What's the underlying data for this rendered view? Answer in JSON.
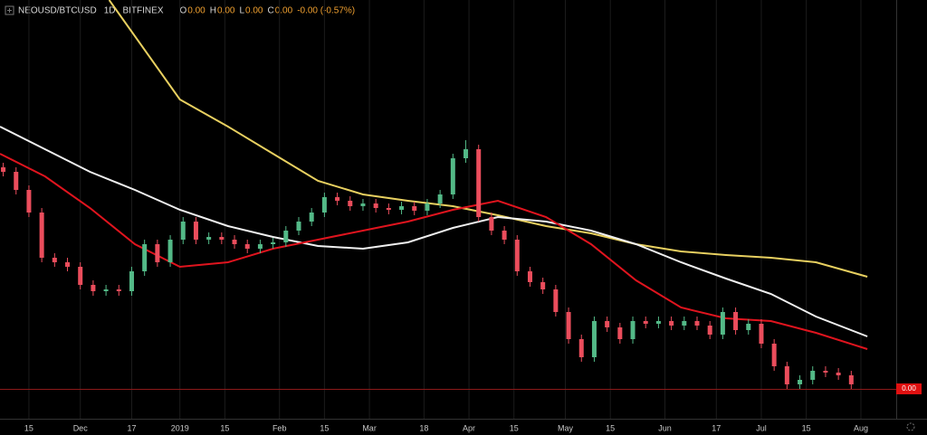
{
  "chart_data": {
    "type": "candlestick",
    "header": {
      "symbol": "NEOUSD/BTCUSD",
      "interval": "1D",
      "exchange": "BITFINEX",
      "ohlc": [
        {
          "key": "O",
          "value": "0.00"
        },
        {
          "key": "H",
          "value": "0.00"
        },
        {
          "key": "L",
          "value": "0.00"
        },
        {
          "key": "C",
          "value": "0.00"
        }
      ],
      "change": "-0.00 (-0.57%)"
    },
    "xlim": [
      -9,
      270
    ],
    "xticks": [
      {
        "value": 0,
        "label": "15"
      },
      {
        "value": 16,
        "label": "Dec"
      },
      {
        "value": 32,
        "label": "17"
      },
      {
        "value": 47,
        "label": "2019"
      },
      {
        "value": 61,
        "label": "15"
      },
      {
        "value": 78,
        "label": "Feb"
      },
      {
        "value": 92,
        "label": "15"
      },
      {
        "value": 106,
        "label": "Mar"
      },
      {
        "value": 123,
        "label": "18"
      },
      {
        "value": 137,
        "label": "Apr"
      },
      {
        "value": 151,
        "label": "15"
      },
      {
        "value": 167,
        "label": "May"
      },
      {
        "value": 181,
        "label": "15"
      },
      {
        "value": 198,
        "label": "Jun"
      },
      {
        "value": 214,
        "label": "17"
      },
      {
        "value": 228,
        "label": "Jul"
      },
      {
        "value": 242,
        "label": "15"
      },
      {
        "value": 259,
        "label": "Aug"
      }
    ],
    "ylim": [
      0,
      430
    ],
    "up_color": "#53b987",
    "down_color": "#eb4d5c",
    "x": [
      -8,
      -4,
      0,
      4,
      8,
      12,
      16,
      20,
      24,
      28,
      32,
      36,
      40,
      44,
      48,
      52,
      56,
      60,
      64,
      68,
      72,
      76,
      80,
      84,
      88,
      92,
      96,
      100,
      104,
      108,
      112,
      116,
      120,
      124,
      128,
      132,
      136,
      140,
      144,
      148,
      152,
      156,
      160,
      164,
      168,
      172,
      176,
      180,
      184,
      188,
      192,
      196,
      200,
      204,
      208,
      212,
      216,
      220,
      224,
      228,
      232,
      236,
      240,
      244,
      248,
      252,
      256
    ],
    "open": [
      245,
      240,
      220,
      195,
      145,
      140,
      135,
      115,
      108,
      110,
      108,
      130,
      160,
      140,
      165,
      185,
      165,
      168,
      165,
      160,
      155,
      160,
      162,
      175,
      185,
      195,
      212,
      208,
      202,
      205,
      200,
      198,
      202,
      197,
      205,
      215,
      255,
      265,
      190,
      175,
      165,
      130,
      118,
      110,
      85,
      55,
      35,
      75,
      68,
      55,
      75,
      72,
      75,
      70,
      75,
      70,
      60,
      85,
      65,
      72,
      50,
      25,
      5,
      10,
      20,
      18,
      15
    ],
    "high": [
      250,
      245,
      225,
      200,
      150,
      145,
      140,
      120,
      115,
      115,
      135,
      165,
      165,
      170,
      190,
      190,
      173,
      173,
      170,
      165,
      165,
      167,
      180,
      190,
      200,
      217,
      217,
      213,
      210,
      210,
      205,
      207,
      207,
      210,
      220,
      260,
      275,
      270,
      195,
      180,
      170,
      135,
      123,
      115,
      90,
      60,
      80,
      80,
      73,
      80,
      80,
      80,
      80,
      80,
      80,
      75,
      90,
      90,
      77,
      77,
      55,
      30,
      15,
      25,
      25,
      23,
      20
    ],
    "low": [
      235,
      215,
      190,
      140,
      135,
      130,
      110,
      103,
      103,
      103,
      103,
      125,
      135,
      135,
      160,
      160,
      160,
      160,
      155,
      150,
      150,
      155,
      157,
      170,
      180,
      190,
      203,
      197,
      197,
      195,
      193,
      193,
      192,
      192,
      200,
      210,
      250,
      185,
      170,
      160,
      125,
      113,
      105,
      80,
      50,
      30,
      30,
      63,
      50,
      50,
      67,
      67,
      65,
      65,
      65,
      55,
      55,
      60,
      60,
      45,
      20,
      0,
      0,
      5,
      13,
      10,
      0
    ],
    "close": [
      240,
      220,
      195,
      145,
      140,
      135,
      115,
      108,
      110,
      108,
      130,
      160,
      140,
      165,
      185,
      165,
      168,
      165,
      160,
      155,
      160,
      162,
      175,
      185,
      195,
      212,
      208,
      202,
      205,
      200,
      198,
      202,
      197,
      205,
      215,
      255,
      265,
      190,
      175,
      165,
      130,
      118,
      110,
      85,
      55,
      35,
      75,
      68,
      55,
      75,
      72,
      75,
      70,
      75,
      70,
      60,
      85,
      65,
      72,
      50,
      25,
      5,
      10,
      20,
      18,
      15,
      5
    ],
    "series": [
      {
        "color": "#e8d060",
        "x": [
          25,
          47,
          62,
          76,
          90,
          104,
          118,
          132,
          146,
          161,
          175,
          189,
          203,
          217,
          231,
          245,
          261
        ],
        "values": [
          430,
          320,
          290,
          260,
          230,
          215,
          208,
          202,
          192,
          180,
          172,
          160,
          152,
          148,
          145,
          140,
          124
        ]
      },
      {
        "color": "#f0f0f0",
        "x": [
          -9,
          5,
          19,
          33,
          47,
          62,
          76,
          90,
          104,
          118,
          132,
          146,
          161,
          175,
          189,
          203,
          217,
          231,
          245,
          261
        ],
        "values": [
          290,
          265,
          240,
          220,
          198,
          180,
          168,
          158,
          155,
          162,
          178,
          190,
          185,
          175,
          160,
          140,
          122,
          105,
          80,
          58
        ]
      },
      {
        "color": "#e0141e",
        "x": [
          -9,
          5,
          19,
          33,
          47,
          62,
          76,
          90,
          104,
          118,
          132,
          146,
          161,
          175,
          189,
          203,
          217,
          231,
          245,
          261
        ],
        "values": [
          260,
          235,
          200,
          160,
          135,
          140,
          155,
          165,
          175,
          185,
          198,
          208,
          190,
          160,
          120,
          90,
          78,
          75,
          62,
          44
        ]
      }
    ],
    "last_price": 0,
    "last_price_label": "0.00"
  }
}
